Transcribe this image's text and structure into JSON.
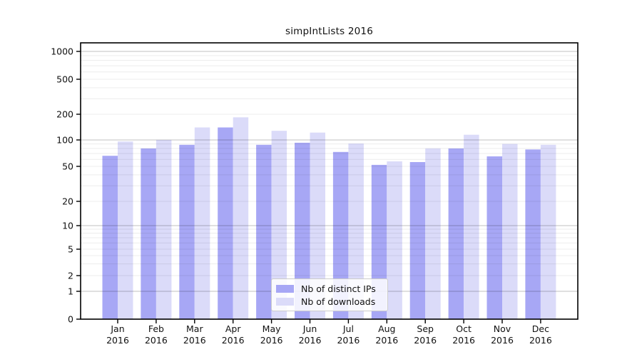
{
  "title": "simpIntLists 2016",
  "legend": {
    "items": [
      {
        "label": "Nb of distinct IPs",
        "color": "#a7a7f5"
      },
      {
        "label": "Nb of downloads",
        "color": "#dbdbf9"
      }
    ]
  },
  "chart_data": {
    "type": "bar",
    "title": "simpIntLists 2016",
    "categories": [
      "Jan 2016",
      "Feb 2016",
      "Mar 2016",
      "Apr 2016",
      "May 2016",
      "Jun 2016",
      "Jul 2016",
      "Aug 2016",
      "Sep 2016",
      "Oct 2016",
      "Nov 2016",
      "Dec 2016"
    ],
    "series": [
      {
        "name": "Nb of distinct IPs",
        "color": "#a7a7f5",
        "values": [
          66,
          80,
          88,
          140,
          88,
          93,
          73,
          52,
          56,
          80,
          65,
          78
        ]
      },
      {
        "name": "Nb of downloads",
        "color": "#dbdbf9",
        "values": [
          96,
          100,
          140,
          184,
          128,
          122,
          91,
          57,
          80,
          115,
          90,
          88
        ]
      }
    ],
    "y_ticks": [
      0,
      1,
      2,
      5,
      10,
      20,
      50,
      100,
      200,
      500,
      1000
    ],
    "y_scale": "pseudo-log",
    "ylim": [
      0,
      1000
    ],
    "grid": true,
    "grid_major_color": "#c3c3c3",
    "grid_minor_color": "#ededed",
    "axis_color": "#000000",
    "legend_position": "lower-center"
  }
}
